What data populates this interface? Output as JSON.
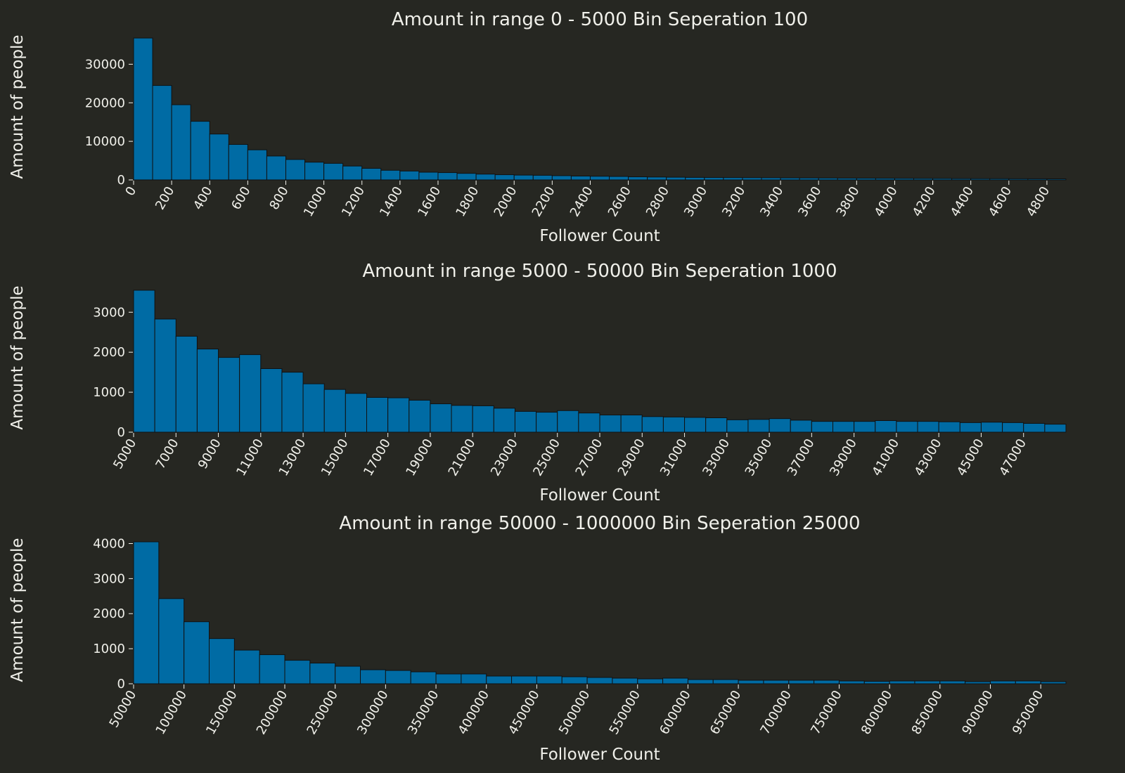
{
  "colors": {
    "background": "#262722",
    "bar": "#006ba4",
    "bar_edge": "#111111",
    "text": "#f0f0ea"
  },
  "chart_data": [
    {
      "type": "bar",
      "title": "Amount in range 0 - 5000 Bin Seperation 100",
      "xlabel": "Follower Count",
      "ylabel": "Amount of people",
      "bin_start": 0,
      "bin_width": 100,
      "xlim": [
        0,
        4900
      ],
      "ylim": [
        0,
        37000
      ],
      "yticks": [
        0,
        10000,
        20000,
        30000
      ],
      "xticks": [
        0,
        200,
        400,
        600,
        800,
        1000,
        1200,
        1400,
        1600,
        1800,
        2000,
        2200,
        2400,
        2600,
        2800,
        3000,
        3200,
        3400,
        3600,
        3800,
        4000,
        4200,
        4400,
        4600,
        4800
      ],
      "values": [
        36800,
        24500,
        19500,
        15200,
        11900,
        9200,
        7800,
        6200,
        5300,
        4600,
        4300,
        3600,
        3000,
        2500,
        2300,
        2000,
        1900,
        1700,
        1500,
        1350,
        1250,
        1200,
        1100,
        1000,
        950,
        900,
        800,
        750,
        700,
        650,
        620,
        600,
        580,
        560,
        520,
        500,
        480,
        450,
        440,
        420,
        400,
        380,
        370,
        340,
        330,
        320,
        300,
        290,
        270
      ]
    },
    {
      "type": "bar",
      "title": "Amount in range 5000 - 50000 Bin Seperation 1000",
      "xlabel": "Follower Count",
      "ylabel": "Amount of people",
      "bin_start": 5000,
      "bin_width": 1000,
      "xlim": [
        5000,
        49000
      ],
      "ylim": [
        0,
        3550
      ],
      "yticks": [
        0,
        1000,
        2000,
        3000
      ],
      "xticks": [
        5000,
        7000,
        9000,
        11000,
        13000,
        15000,
        17000,
        19000,
        21000,
        23000,
        25000,
        27000,
        29000,
        31000,
        33000,
        35000,
        37000,
        39000,
        41000,
        43000,
        45000,
        47000
      ],
      "values": [
        3550,
        2830,
        2400,
        2080,
        1870,
        1940,
        1590,
        1500,
        1210,
        1070,
        970,
        870,
        860,
        800,
        710,
        670,
        660,
        600,
        520,
        500,
        540,
        480,
        430,
        430,
        390,
        380,
        370,
        360,
        310,
        320,
        340,
        300,
        270,
        270,
        270,
        290,
        270,
        270,
        260,
        240,
        250,
        240,
        220,
        200
      ]
    },
    {
      "type": "bar",
      "title": "Amount in range 50000 - 1000000 Bin Seperation 25000",
      "xlabel": "Follower Count",
      "ylabel": "Amount of people",
      "bin_start": 50000,
      "bin_width": 25000,
      "xlim": [
        50000,
        975000
      ],
      "ylim": [
        0,
        4050
      ],
      "yticks": [
        0,
        1000,
        2000,
        3000,
        4000
      ],
      "xticks": [
        50000,
        100000,
        150000,
        200000,
        250000,
        300000,
        350000,
        400000,
        450000,
        500000,
        550000,
        600000,
        650000,
        700000,
        750000,
        800000,
        850000,
        900000,
        950000
      ],
      "values": [
        4050,
        2430,
        1770,
        1290,
        960,
        830,
        670,
        590,
        500,
        400,
        380,
        340,
        280,
        280,
        220,
        220,
        220,
        200,
        180,
        160,
        140,
        160,
        120,
        120,
        100,
        100,
        100,
        100,
        80,
        70,
        80,
        80,
        80,
        60,
        80,
        80,
        60
      ]
    }
  ]
}
